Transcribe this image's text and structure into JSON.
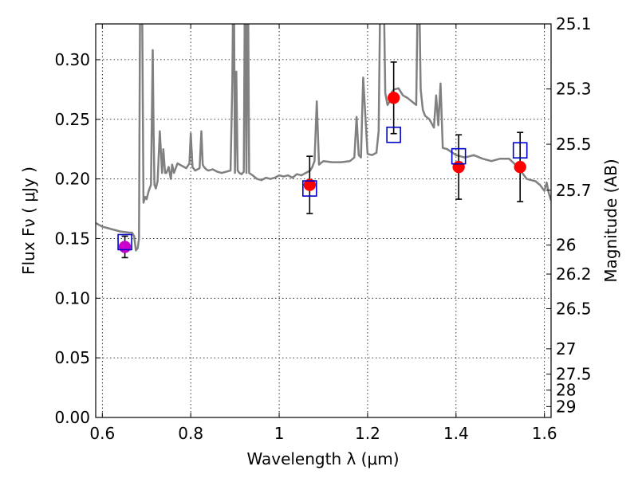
{
  "chart_data": {
    "type": "scatter",
    "xlabel": "Wavelength  λ (μm)",
    "ylabel": "Flux  Fν  ( μJy )",
    "ylabel_right": "Magnitude (AB)",
    "xlim": [
      0.585,
      1.615
    ],
    "ylim": [
      0.0,
      0.33
    ],
    "grid": true,
    "x_ticks": [
      {
        "value": 0.6,
        "label": "0.6"
      },
      {
        "value": 0.8,
        "label": "0.8"
      },
      {
        "value": 1.0,
        "label": "1"
      },
      {
        "value": 1.2,
        "label": "1.2"
      },
      {
        "value": 1.4,
        "label": "1.4"
      },
      {
        "value": 1.6,
        "label": "1.6"
      }
    ],
    "y_ticks": [
      {
        "value": 0.0,
        "label": "0.00"
      },
      {
        "value": 0.05,
        "label": "0.05"
      },
      {
        "value": 0.1,
        "label": "0.10"
      },
      {
        "value": 0.15,
        "label": "0.15"
      },
      {
        "value": 0.2,
        "label": "0.20"
      },
      {
        "value": 0.25,
        "label": "0.25"
      },
      {
        "value": 0.3,
        "label": "0.30"
      }
    ],
    "right_ticks": [
      {
        "mag": 25.1,
        "label": "25.1"
      },
      {
        "mag": 25.3,
        "label": "25.3"
      },
      {
        "mag": 25.5,
        "label": "25.5"
      },
      {
        "mag": 25.7,
        "label": "25.7"
      },
      {
        "mag": 26.0,
        "label": "26"
      },
      {
        "mag": 26.2,
        "label": "26.2"
      },
      {
        "mag": 26.5,
        "label": "26.5"
      },
      {
        "mag": 27.0,
        "label": "27"
      },
      {
        "mag": 27.5,
        "label": "27.5"
      },
      {
        "mag": 28.0,
        "label": "28"
      },
      {
        "mag": 29.0,
        "label": "29"
      }
    ],
    "spectrum": {
      "color": "#808080",
      "x": [
        0.585,
        0.6,
        0.62,
        0.64,
        0.66,
        0.667,
        0.672,
        0.676,
        0.68,
        0.683,
        0.686,
        0.689,
        0.693,
        0.697,
        0.7,
        0.705,
        0.71,
        0.714,
        0.716,
        0.718,
        0.721,
        0.725,
        0.73,
        0.735,
        0.738,
        0.742,
        0.745,
        0.75,
        0.755,
        0.758,
        0.762,
        0.77,
        0.78,
        0.79,
        0.797,
        0.8,
        0.804,
        0.81,
        0.815,
        0.82,
        0.824,
        0.827,
        0.83,
        0.835,
        0.84,
        0.85,
        0.86,
        0.87,
        0.88,
        0.89,
        0.894,
        0.897,
        0.9,
        0.903,
        0.906,
        0.91,
        0.915,
        0.92,
        0.923,
        0.926,
        0.929,
        0.932,
        0.94,
        0.95,
        0.96,
        0.97,
        0.98,
        0.99,
        1.0,
        1.01,
        1.02,
        1.03,
        1.04,
        1.05,
        1.06,
        1.07,
        1.075,
        1.08,
        1.085,
        1.09,
        1.1,
        1.12,
        1.14,
        1.16,
        1.17,
        1.175,
        1.18,
        1.185,
        1.19,
        1.2,
        1.21,
        1.22,
        1.225,
        1.23,
        1.235,
        1.24,
        1.245,
        1.25,
        1.255,
        1.26,
        1.27,
        1.28,
        1.29,
        1.3,
        1.31,
        1.315,
        1.32,
        1.325,
        1.33,
        1.34,
        1.35,
        1.355,
        1.36,
        1.365,
        1.37,
        1.38,
        1.4,
        1.42,
        1.44,
        1.46,
        1.48,
        1.5,
        1.52,
        1.54,
        1.56,
        1.58,
        1.59,
        1.6,
        1.605,
        1.61,
        1.615
      ],
      "y": [
        0.163,
        0.16,
        0.158,
        0.156,
        0.155,
        0.155,
        0.152,
        0.14,
        0.142,
        0.15,
        0.4,
        0.4,
        0.18,
        0.185,
        0.183,
        0.19,
        0.195,
        0.308,
        0.24,
        0.195,
        0.192,
        0.198,
        0.24,
        0.205,
        0.225,
        0.205,
        0.205,
        0.21,
        0.2,
        0.212,
        0.205,
        0.213,
        0.211,
        0.209,
        0.213,
        0.238,
        0.21,
        0.207,
        0.208,
        0.209,
        0.24,
        0.212,
        0.21,
        0.208,
        0.207,
        0.208,
        0.206,
        0.205,
        0.206,
        0.207,
        0.28,
        0.4,
        0.205,
        0.29,
        0.207,
        0.205,
        0.204,
        0.206,
        0.4,
        0.205,
        0.4,
        0.205,
        0.203,
        0.2,
        0.199,
        0.201,
        0.2,
        0.201,
        0.203,
        0.202,
        0.203,
        0.201,
        0.204,
        0.203,
        0.205,
        0.207,
        0.21,
        0.215,
        0.265,
        0.212,
        0.215,
        0.214,
        0.214,
        0.215,
        0.218,
        0.252,
        0.22,
        0.218,
        0.285,
        0.221,
        0.22,
        0.222,
        0.24,
        0.4,
        0.4,
        0.272,
        0.262,
        0.265,
        0.273,
        0.275,
        0.276,
        0.27,
        0.268,
        0.265,
        0.262,
        0.4,
        0.275,
        0.258,
        0.253,
        0.25,
        0.243,
        0.27,
        0.245,
        0.28,
        0.226,
        0.225,
        0.22,
        0.218,
        0.22,
        0.217,
        0.215,
        0.217,
        0.217,
        0.21,
        0.2,
        0.198,
        0.195,
        0.19,
        0.197,
        0.188,
        0.182
      ]
    },
    "model_points": {
      "marker": "square",
      "color": "#0000cc",
      "x": [
        0.651,
        1.069,
        1.259,
        1.406,
        1.545
      ],
      "y": [
        0.147,
        0.192,
        0.237,
        0.219,
        0.224
      ]
    },
    "observed_points": {
      "marker": "circle",
      "color": "#ff0000",
      "x": [
        0.651,
        1.069,
        1.259,
        1.406,
        1.545
      ],
      "y": [
        0.143,
        0.195,
        0.268,
        0.21,
        0.21
      ],
      "err": [
        0.009,
        0.024,
        0.03,
        0.027,
        0.029
      ],
      "highlight_color": "#cc00cc",
      "highlight_index": 0
    }
  }
}
